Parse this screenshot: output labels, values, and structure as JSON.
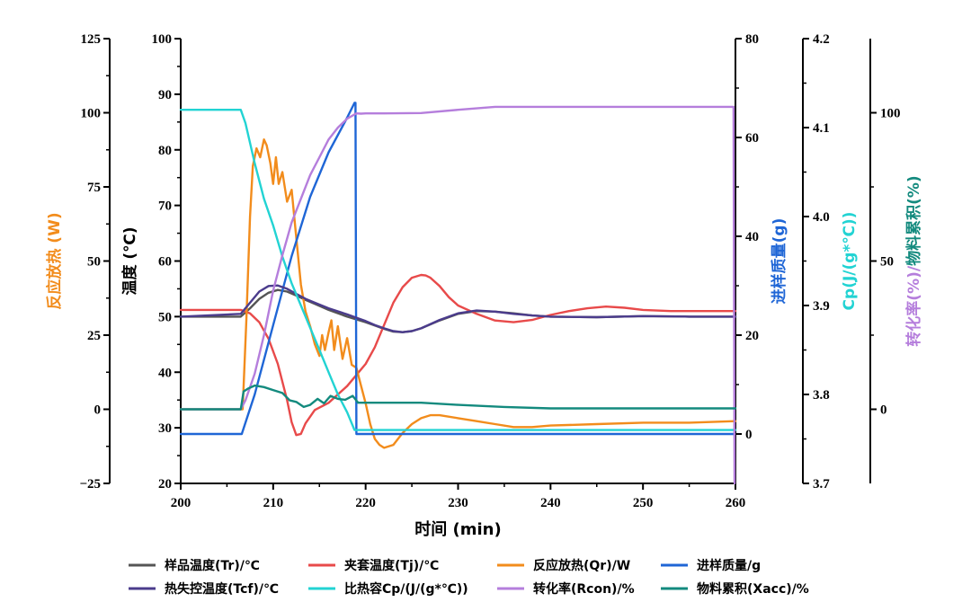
{
  "chart_data": {
    "type": "line",
    "xlabel": "时间 (min)",
    "xlim": [
      200,
      260
    ],
    "xticks": [
      200,
      210,
      220,
      230,
      240,
      250,
      260
    ],
    "axes": {
      "qr": {
        "label": "反应放热 (W)",
        "color": "#F28C1C",
        "lim": [
          -25,
          125
        ],
        "ticks": [
          -25,
          0,
          25,
          50,
          75,
          100,
          125
        ],
        "tick_labels": [
          "−25",
          "0",
          "25",
          "50",
          "75",
          "100",
          "125"
        ]
      },
      "temp": {
        "label": "温度 (℃)",
        "color": "#000000",
        "lim": [
          20,
          100
        ],
        "ticks": [
          20,
          30,
          40,
          50,
          60,
          70,
          80,
          90,
          100
        ],
        "tick_labels": [
          "20",
          "30",
          "40",
          "50",
          "60",
          "70",
          "80",
          "90",
          "100"
        ]
      },
      "mass": {
        "label": "进样质量(g)",
        "color": "#1F66D6",
        "lim": [
          -10,
          80
        ],
        "ticks": [
          0,
          20,
          40,
          60,
          80
        ],
        "tick_labels": [
          "0",
          "20",
          "40",
          "60",
          "80"
        ]
      },
      "cp": {
        "label": "Cp(J/(g*℃))",
        "color": "#22D3D3",
        "lim": [
          3.7,
          4.2
        ],
        "ticks": [
          3.7,
          3.8,
          3.9,
          4.0,
          4.1,
          4.2
        ],
        "tick_labels": [
          "3.7",
          "3.8",
          "3.9",
          "4.0",
          "4.1",
          "4.2"
        ]
      },
      "pct": {
        "label": "转化率(%)/物料累积(%)",
        "label_part1": "转化率(%)/",
        "label_part2": "物料累积(%)",
        "color1": "#B57EDC",
        "color2": "#138A7E",
        "lim": [
          -25,
          125
        ],
        "ticks": [
          0,
          50,
          100
        ],
        "tick_labels": [
          "0",
          "50",
          "100"
        ]
      }
    },
    "series": [
      {
        "name": "样品温度(Tr)/℃",
        "axis": "temp",
        "color": "#555555",
        "x": [
          200,
          206.5,
          207.5,
          208.5,
          209.5,
          210.5,
          211.5,
          212.5,
          213.5,
          214.5,
          216,
          218,
          219,
          220,
          221,
          222,
          223,
          224,
          225,
          226,
          228,
          230,
          232,
          234,
          236,
          238,
          240,
          245,
          250,
          255,
          260
        ],
        "y": [
          50,
          50,
          51.5,
          53.2,
          54.3,
          54.8,
          54.5,
          53.8,
          53,
          52.3,
          51.2,
          50,
          49.5,
          49,
          48.4,
          47.8,
          47.3,
          47.2,
          47.4,
          47.9,
          49.3,
          50.5,
          51,
          50.9,
          50.6,
          50.2,
          50,
          49.9,
          50.1,
          50,
          50
        ]
      },
      {
        "name": "夹套温度(Tj)/℃",
        "axis": "temp",
        "color": "#E84A4A",
        "x": [
          200,
          206.5,
          207.5,
          208.5,
          209.5,
          210.5,
          211.5,
          212,
          212.5,
          213,
          213.5,
          214.5,
          216,
          218,
          219,
          220,
          221,
          222,
          223,
          224,
          225,
          226,
          226.5,
          227,
          228,
          229,
          230,
          232,
          234,
          236,
          238,
          240,
          242,
          244,
          246,
          248,
          250,
          253,
          256,
          260
        ],
        "y": [
          51.2,
          51.2,
          50.6,
          49,
          46,
          41.5,
          35,
          31,
          28.7,
          28.9,
          30.8,
          33.2,
          34.5,
          37.5,
          39.5,
          41.5,
          44.5,
          48.5,
          52.5,
          55.3,
          57,
          57.5,
          57.4,
          57,
          55.5,
          53.5,
          52,
          50.5,
          49.3,
          49,
          49.4,
          50.3,
          51,
          51.5,
          51.8,
          51.6,
          51.2,
          51,
          51,
          51
        ]
      },
      {
        "name": "反应放热(Qr)/W",
        "axis": "qr",
        "color": "#F28C1C",
        "x": [
          200,
          206.7,
          207.1,
          207.5,
          207.8,
          208.2,
          208.6,
          209,
          209.3,
          209.7,
          210,
          210.3,
          210.6,
          211,
          211.5,
          212,
          212.5,
          213,
          213.5,
          214,
          214.5,
          215,
          215.3,
          215.6,
          216,
          216.3,
          216.6,
          217,
          217.5,
          218,
          218.5,
          219,
          219.5,
          220,
          220.5,
          221,
          221.5,
          222,
          223,
          224,
          225,
          226,
          227,
          228,
          230,
          232,
          234,
          236,
          238,
          240,
          245,
          250,
          255,
          260
        ],
        "y": [
          0,
          0,
          30,
          65,
          82,
          88,
          85,
          91,
          89,
          83,
          76,
          85,
          76,
          80,
          70,
          74,
          58,
          42,
          33,
          28,
          22,
          18,
          25,
          20,
          26,
          30,
          20,
          28,
          17,
          24,
          15,
          14,
          8,
          2,
          -5,
          -10,
          -12,
          -13,
          -12,
          -8,
          -5,
          -3,
          -2,
          -2,
          -3,
          -4,
          -5,
          -6,
          -6,
          -5.5,
          -5,
          -4.5,
          -4.5,
          -4
        ]
      },
      {
        "name": "进样质量/g",
        "axis": "mass",
        "color": "#1F66D6",
        "x": [
          200,
          206.5,
          206.6,
          208,
          210,
          212,
          214,
          216,
          218,
          218.8,
          218.9,
          219,
          259.8,
          259.9
        ],
        "y": [
          0,
          0,
          0,
          8,
          22,
          36,
          48,
          57,
          64,
          67,
          67,
          0,
          0,
          0
        ]
      },
      {
        "name": "热失控温度(Tcf)/℃",
        "axis": "temp",
        "color": "#4B3C8C",
        "x": [
          200,
          206.5,
          207.5,
          208.5,
          209.5,
          210.5,
          211.5,
          212.5,
          213.5,
          214.5,
          216,
          218,
          219,
          220,
          221,
          222,
          223,
          224,
          225,
          226,
          228,
          230,
          232,
          234,
          236,
          238,
          240,
          245,
          250,
          255,
          260
        ],
        "y": [
          50,
          50.5,
          52.5,
          54.5,
          55.5,
          55.6,
          55,
          54.1,
          53.2,
          52.5,
          51.5,
          50.4,
          49.8,
          49.2,
          48.5,
          47.9,
          47.4,
          47.2,
          47.4,
          47.9,
          49.4,
          50.6,
          51.1,
          50.9,
          50.5,
          50.2,
          50,
          49.9,
          50.1,
          50,
          50
        ]
      },
      {
        "name": "比热容Cp/(J/(g*℃))",
        "axis": "cp",
        "color": "#22D3D3",
        "x": [
          200,
          206.5,
          207,
          208,
          209,
          210,
          211,
          212,
          213,
          214,
          215,
          216,
          217,
          218,
          218.8,
          219,
          260
        ],
        "y": [
          4.12,
          4.12,
          4.105,
          4.06,
          4.02,
          3.99,
          3.955,
          3.925,
          3.9,
          3.875,
          3.85,
          3.825,
          3.8,
          3.78,
          3.76,
          3.76,
          3.76
        ]
      },
      {
        "name": "转化率(Rcon)/%",
        "axis": "pct",
        "color": "#B57EDC",
        "x": [
          200,
          206.5,
          207,
          208,
          209,
          210,
          211,
          212,
          213,
          214,
          215,
          216,
          217,
          218,
          219,
          219.5,
          220,
          222,
          226,
          230,
          234,
          240,
          250,
          259.8,
          259.9
        ],
        "y": [
          0,
          0,
          3,
          12,
          25,
          40,
          52,
          63,
          71,
          79,
          85,
          91,
          95,
          98,
          99.8,
          99.7,
          99.8,
          99.8,
          99.9,
          101,
          102,
          102,
          102,
          102,
          -25
        ]
      },
      {
        "name": "物料累积(Xacc)/%",
        "axis": "pct",
        "color": "#138A7E",
        "x": [
          200,
          206.5,
          206.8,
          207.3,
          208,
          209,
          210,
          211,
          211.8,
          212.5,
          213.3,
          214,
          214.8,
          215.5,
          216.2,
          217,
          217.8,
          218.6,
          219.2,
          220,
          222,
          226,
          230,
          235,
          240,
          250,
          260
        ],
        "y": [
          0,
          0,
          6,
          7,
          8,
          7.5,
          6.5,
          5.5,
          3,
          2.5,
          0.8,
          1.5,
          3.5,
          2,
          4.5,
          3.5,
          3.2,
          4.5,
          2.2,
          2.2,
          2.2,
          2.2,
          1.5,
          0.8,
          0.3,
          0.3,
          0.3
        ]
      }
    ],
    "grid": false,
    "legend_position": "bottom"
  }
}
